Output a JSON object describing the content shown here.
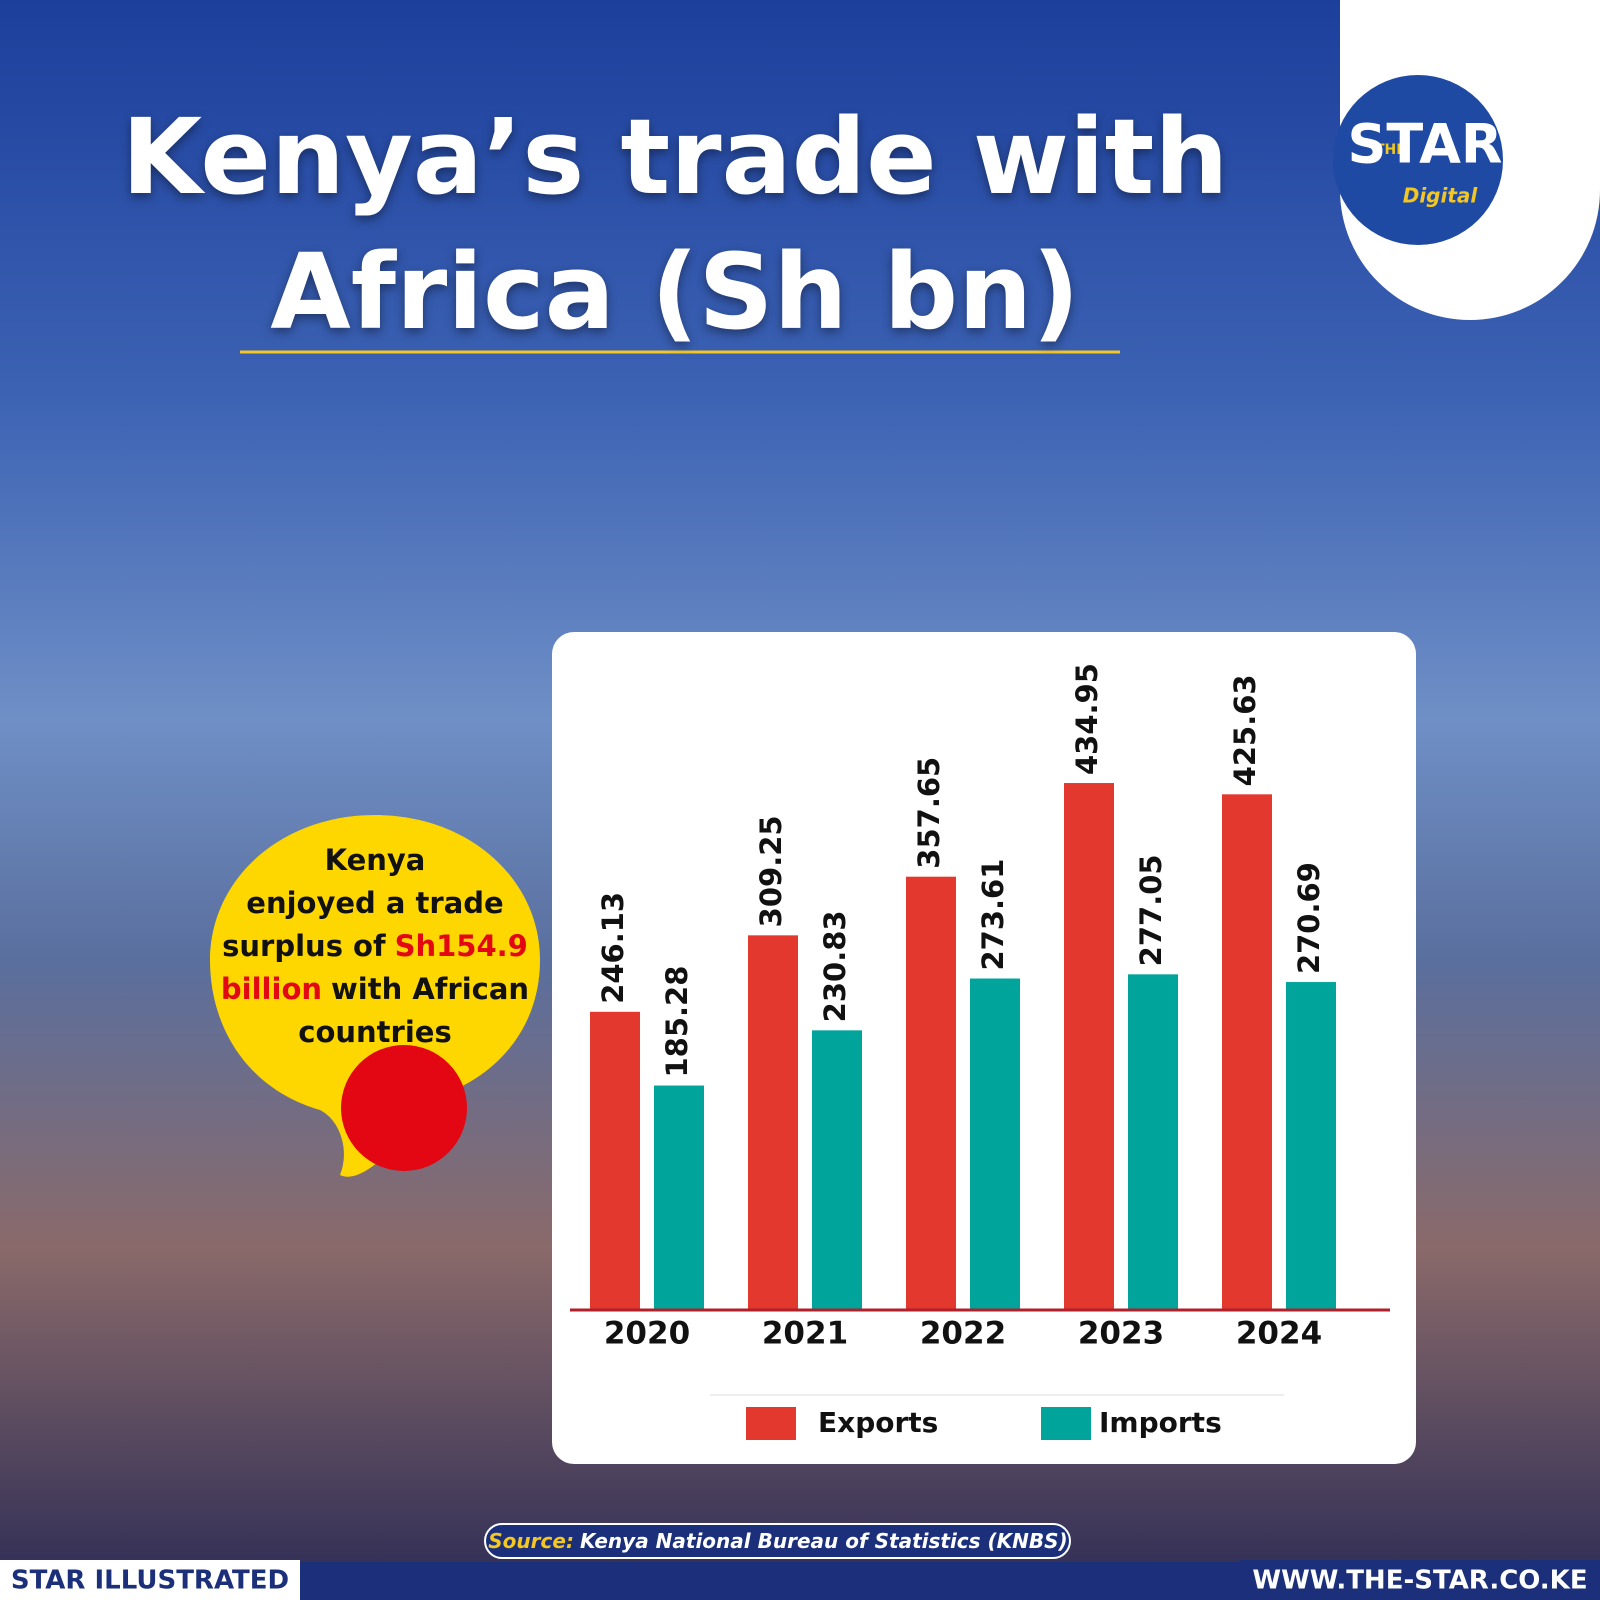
{
  "chart_data": {
    "type": "bar",
    "title": "Kenya’s trade with Africa (Sh bn)",
    "categories": [
      "2020",
      "2021",
      "2022",
      "2023",
      "2024"
    ],
    "series": [
      {
        "name": "Exports",
        "color": "#e2382d",
        "values": [
          246.13,
          309.25,
          357.65,
          434.95,
          425.63
        ]
      },
      {
        "name": "Imports",
        "color": "#00a49a",
        "values": [
          185.28,
          230.83,
          273.61,
          277.05,
          270.69
        ]
      }
    ],
    "ylim": [
      0,
      520
    ]
  },
  "callout": {
    "line1": "Kenya",
    "line2": "enjoyed a trade",
    "line3a": "surplus of",
    "line3b": "Sh154.9",
    "line4a": "billion",
    "line4b": "with African",
    "line5": "countries"
  },
  "logo": {
    "small": "THE",
    "main": "STAR",
    "sub": "Digital"
  },
  "source": {
    "label": "Source:",
    "text": "Kenya National Bureau of Statistics (KNBS)"
  },
  "footer": {
    "left": "STAR ILLUSTRATED",
    "right": "WWW.THE-STAR.CO.KE"
  }
}
